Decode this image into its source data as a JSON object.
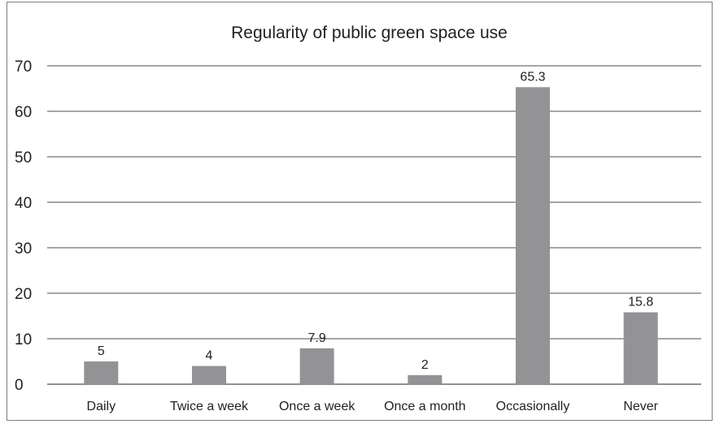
{
  "chart_data": {
    "type": "bar",
    "title": "Regularity of public green space use",
    "xlabel": "",
    "ylabel": "",
    "categories": [
      "Daily",
      "Twice a week",
      "Once a week",
      "Once a month",
      "Occasionally",
      "Never"
    ],
    "values": [
      5,
      4,
      7.9,
      2,
      65.3,
      15.8
    ],
    "data_labels": [
      "5",
      "4",
      "7.9",
      "2",
      "65.3",
      "15.8"
    ],
    "ylim": [
      0,
      70
    ],
    "yticks": [
      0,
      10,
      20,
      30,
      40,
      50,
      60,
      70
    ],
    "grid": true,
    "legend": "none",
    "bar_color": "#939396"
  }
}
